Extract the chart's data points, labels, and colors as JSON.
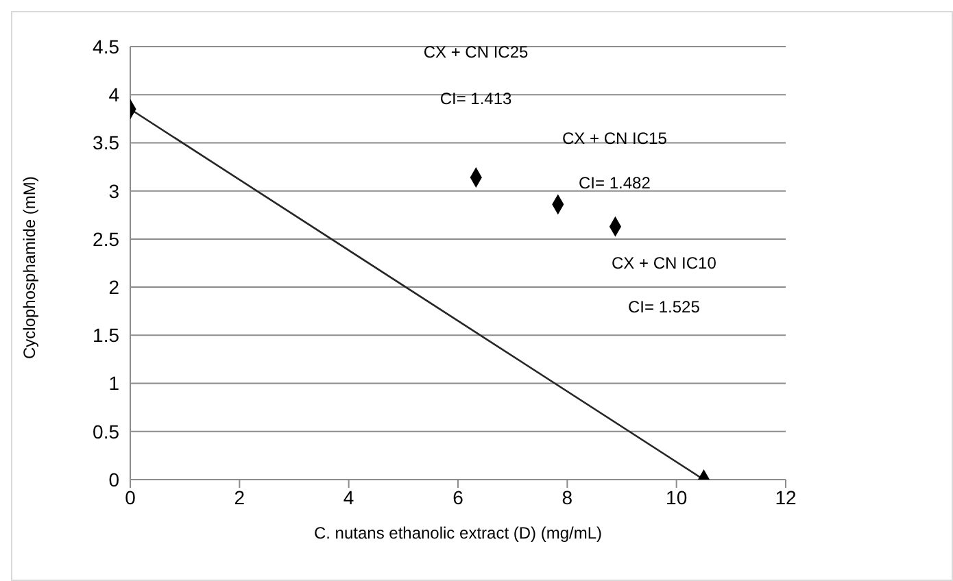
{
  "chart_data": {
    "type": "scatter",
    "xlabel": "C. nutans ethanolic extract (D) (mg/mL)",
    "ylabel": "Cyclophosphamide (mM)",
    "xlim": [
      0,
      12
    ],
    "xticks": [
      0,
      2,
      4,
      6,
      8,
      10,
      12
    ],
    "ylim": [
      0,
      4.5
    ],
    "yticks": [
      0,
      0.5,
      1,
      1.5,
      2,
      2.5,
      3,
      3.5,
      4,
      4.5
    ],
    "grid": "y",
    "legend": false,
    "marker": "diamond",
    "series": [
      {
        "type": "line",
        "color": "#262626",
        "x": [
          0,
          10.5
        ],
        "values": [
          3.85,
          0
        ],
        "marker": "none"
      },
      {
        "color": "#000000",
        "x": [
          0,
          10.5,
          6.33,
          7.83,
          8.88
        ],
        "values": [
          3.85,
          0,
          3.14,
          2.86,
          2.63
        ]
      }
    ],
    "annotations": [
      "CX + CN IC25",
      "CI= 1.413",
      "CX + CN IC15",
      "CI= 1.482",
      "CX + CN IC10",
      "CI= 1.525"
    ]
  }
}
